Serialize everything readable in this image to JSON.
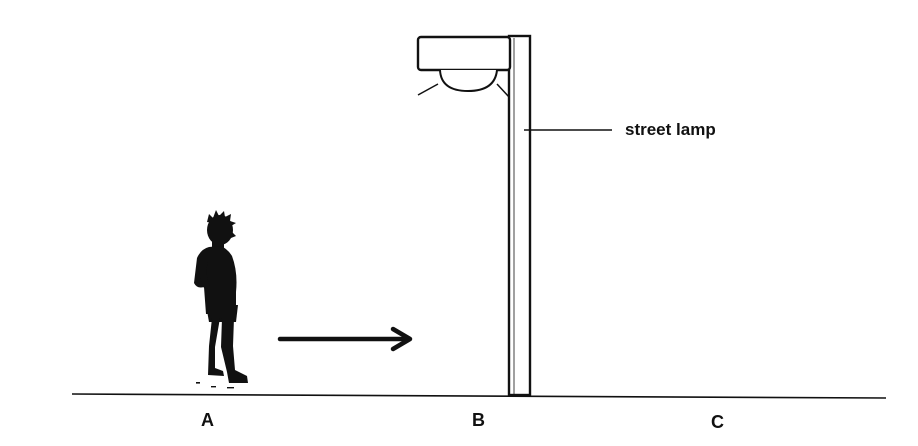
{
  "labels": {
    "lamp": "street lamp",
    "point_a": "A",
    "point_b": "B",
    "point_c": "C"
  },
  "figures": {
    "person": "walking-child-silhouette",
    "direction": "right-arrow",
    "lamp": "street-lamp"
  },
  "colors": {
    "ink": "#111111",
    "background": "#ffffff"
  }
}
